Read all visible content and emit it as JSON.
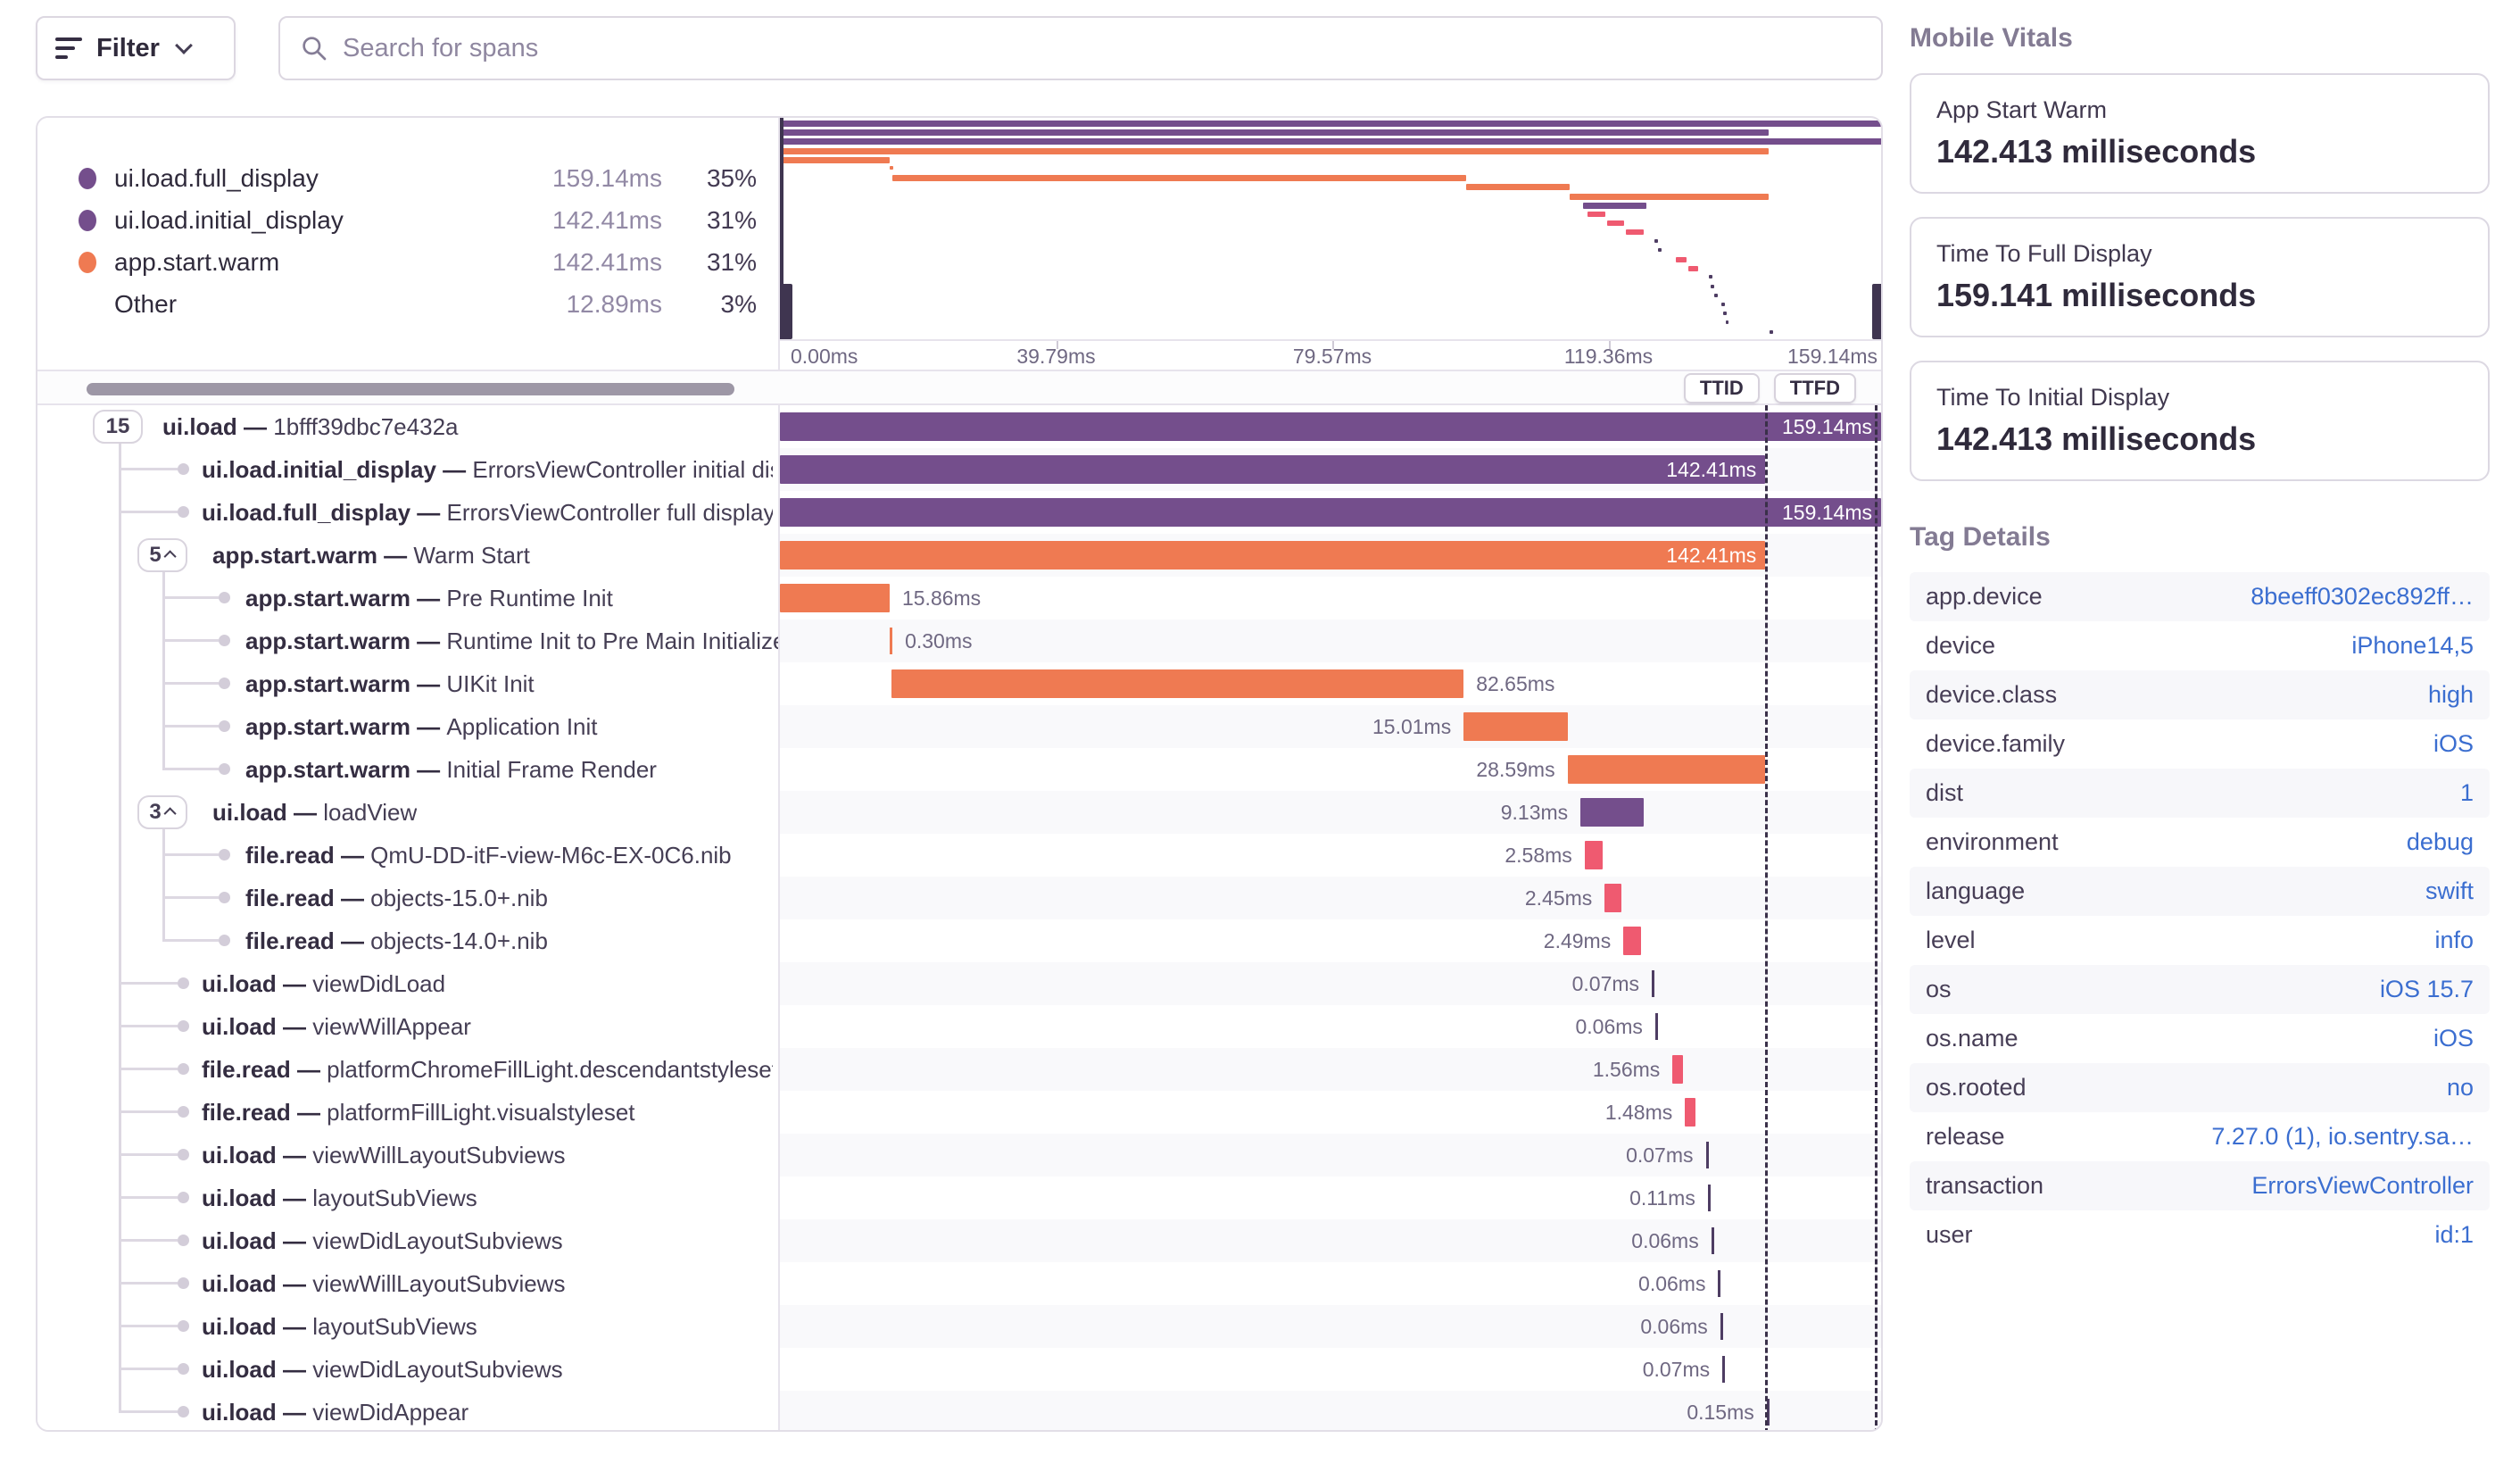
{
  "toolbar": {
    "filter_label": "Filter",
    "search_placeholder": "Search for spans"
  },
  "theme": {
    "purple": "#744e8c",
    "orange": "#ef7a52",
    "pink": "#ef5a70",
    "tick_purple": "#4e3d63",
    "link_blue": "#3b6ed0",
    "dashed_line": "#3a3049"
  },
  "legend": {
    "items": [
      {
        "label": "ui.load.full_display",
        "duration": "159.14ms",
        "pct": "35%",
        "color": "#744e8c"
      },
      {
        "label": "ui.load.initial_display",
        "duration": "142.41ms",
        "pct": "31%",
        "color": "#744e8c"
      },
      {
        "label": "app.start.warm",
        "duration": "142.41ms",
        "pct": "31%",
        "color": "#ef7a52"
      },
      {
        "label": "Other",
        "duration": "12.89ms",
        "pct": "3%",
        "color": ""
      }
    ]
  },
  "axis": {
    "ticks": [
      "0.00ms",
      "39.79ms",
      "79.57ms",
      "119.36ms",
      "159.14ms"
    ]
  },
  "header": {
    "ttid": "TTID",
    "ttfd": "TTFD"
  },
  "trace": {
    "total_ms": 159.14,
    "ttid_pct": 89.49,
    "rows": [
      {
        "op": "ui.load",
        "desc": "1bfff39dbc7e432a",
        "count": "15",
        "chev": false,
        "level": 0,
        "color": "purple",
        "start": 0,
        "dur": 159.14,
        "label": "159.14ms",
        "lp": "in"
      },
      {
        "op": "ui.load.initial_display",
        "desc": "ErrorsViewController initial display",
        "level": 1,
        "color": "purple",
        "start": 0,
        "dur": 142.41,
        "label": "142.41ms",
        "lp": "in"
      },
      {
        "op": "ui.load.full_display",
        "desc": "ErrorsViewController full display",
        "level": 1,
        "color": "purple",
        "start": 0,
        "dur": 159.14,
        "label": "159.14ms",
        "lp": "in"
      },
      {
        "op": "app.start.warm",
        "desc": "Warm Start",
        "count": "5",
        "chev": true,
        "level": 1,
        "color": "orange",
        "start": 0,
        "dur": 142.41,
        "label": "142.41ms",
        "lp": "in"
      },
      {
        "op": "app.start.warm",
        "desc": "Pre Runtime Init",
        "level": 2,
        "color": "orange",
        "start": 0,
        "dur": 15.86,
        "label": "15.86ms",
        "lp": "right"
      },
      {
        "op": "app.start.warm",
        "desc": "Runtime Init to Pre Main Initializers",
        "level": 2,
        "color": "orange",
        "start": 15.86,
        "dur": 0.3,
        "label": "0.30ms",
        "lp": "right",
        "tick": true
      },
      {
        "op": "app.start.warm",
        "desc": "UIKit Init",
        "level": 2,
        "color": "orange",
        "start": 16.16,
        "dur": 82.65,
        "label": "82.65ms",
        "lp": "right"
      },
      {
        "op": "app.start.warm",
        "desc": "Application Init",
        "level": 2,
        "color": "orange",
        "start": 98.81,
        "dur": 15.01,
        "label": "15.01ms",
        "lp": "left"
      },
      {
        "op": "app.start.warm",
        "desc": "Initial Frame Render",
        "level": 2,
        "color": "orange",
        "start": 113.82,
        "dur": 28.59,
        "label": "28.59ms",
        "lp": "left"
      },
      {
        "op": "ui.load",
        "desc": "loadView",
        "count": "3",
        "chev": true,
        "level": 1,
        "color": "purple",
        "start": 115.7,
        "dur": 9.13,
        "label": "9.13ms",
        "lp": "left"
      },
      {
        "op": "file.read",
        "desc": "QmU-DD-itF-view-M6c-EX-0C6.nib",
        "level": 2,
        "color": "pink",
        "start": 116.3,
        "dur": 2.58,
        "label": "2.58ms",
        "lp": "left"
      },
      {
        "op": "file.read",
        "desc": "objects-15.0+.nib",
        "level": 2,
        "color": "pink",
        "start": 119.2,
        "dur": 2.45,
        "label": "2.45ms",
        "lp": "left"
      },
      {
        "op": "file.read",
        "desc": "objects-14.0+.nib",
        "level": 2,
        "color": "pink",
        "start": 121.9,
        "dur": 2.49,
        "label": "2.49ms",
        "lp": "left"
      },
      {
        "op": "ui.load",
        "desc": "viewDidLoad",
        "level": 1,
        "color": "tick_purple",
        "start": 126.0,
        "dur": 0.07,
        "label": "0.07ms",
        "lp": "left",
        "tick": true
      },
      {
        "op": "ui.load",
        "desc": "viewWillAppear",
        "level": 1,
        "color": "tick_purple",
        "start": 126.5,
        "dur": 0.06,
        "label": "0.06ms",
        "lp": "left",
        "tick": true
      },
      {
        "op": "file.read",
        "desc": "platformChromeFillLight.descendantstyleset",
        "level": 1,
        "color": "pink",
        "start": 129.0,
        "dur": 1.56,
        "label": "1.56ms",
        "lp": "left"
      },
      {
        "op": "file.read",
        "desc": "platformFillLight.visualstyleset",
        "level": 1,
        "color": "pink",
        "start": 130.8,
        "dur": 1.48,
        "label": "1.48ms",
        "lp": "left"
      },
      {
        "op": "ui.load",
        "desc": "viewWillLayoutSubviews",
        "level": 1,
        "color": "tick_purple",
        "start": 133.8,
        "dur": 0.07,
        "label": "0.07ms",
        "lp": "left",
        "tick": true
      },
      {
        "op": "ui.load",
        "desc": "layoutSubViews",
        "level": 1,
        "color": "tick_purple",
        "start": 134.1,
        "dur": 0.11,
        "label": "0.11ms",
        "lp": "left",
        "tick": true
      },
      {
        "op": "ui.load",
        "desc": "viewDidLayoutSubviews",
        "level": 1,
        "color": "tick_purple",
        "start": 134.6,
        "dur": 0.06,
        "label": "0.06ms",
        "lp": "left",
        "tick": true
      },
      {
        "op": "ui.load",
        "desc": "viewWillLayoutSubviews",
        "level": 1,
        "color": "tick_purple",
        "start": 135.6,
        "dur": 0.06,
        "label": "0.06ms",
        "lp": "left",
        "tick": true
      },
      {
        "op": "ui.load",
        "desc": "layoutSubViews",
        "level": 1,
        "color": "tick_purple",
        "start": 135.9,
        "dur": 0.06,
        "label": "0.06ms",
        "lp": "left",
        "tick": true
      },
      {
        "op": "ui.load",
        "desc": "viewDidLayoutSubviews",
        "level": 1,
        "color": "tick_purple",
        "start": 136.2,
        "dur": 0.07,
        "label": "0.07ms",
        "lp": "left",
        "tick": true
      },
      {
        "op": "ui.load",
        "desc": "viewDidAppear",
        "level": 1,
        "color": "tick_purple",
        "start": 142.6,
        "dur": 0.15,
        "label": "0.15ms",
        "lp": "left",
        "tick": true
      }
    ]
  },
  "vitals": {
    "title": "Mobile Vitals",
    "cards": [
      {
        "label": "App Start Warm",
        "value": "142.413 milliseconds"
      },
      {
        "label": "Time To Full Display",
        "value": "159.141 milliseconds"
      },
      {
        "label": "Time To Initial Display",
        "value": "142.413 milliseconds"
      }
    ]
  },
  "tags": {
    "title": "Tag Details",
    "rows": [
      {
        "key": "app.device",
        "value": "8beeff0302ec892ff…"
      },
      {
        "key": "device",
        "value": "iPhone14,5"
      },
      {
        "key": "device.class",
        "value": "high"
      },
      {
        "key": "device.family",
        "value": "iOS"
      },
      {
        "key": "dist",
        "value": "1"
      },
      {
        "key": "environment",
        "value": "debug"
      },
      {
        "key": "language",
        "value": "swift"
      },
      {
        "key": "level",
        "value": "info"
      },
      {
        "key": "os",
        "value": "iOS 15.7"
      },
      {
        "key": "os.name",
        "value": "iOS"
      },
      {
        "key": "os.rooted",
        "value": "no"
      },
      {
        "key": "release",
        "value": "7.27.0 (1), io.sentry.sa…"
      },
      {
        "key": "transaction",
        "value": "ErrorsViewController"
      },
      {
        "key": "user",
        "value": "id:1"
      }
    ]
  }
}
